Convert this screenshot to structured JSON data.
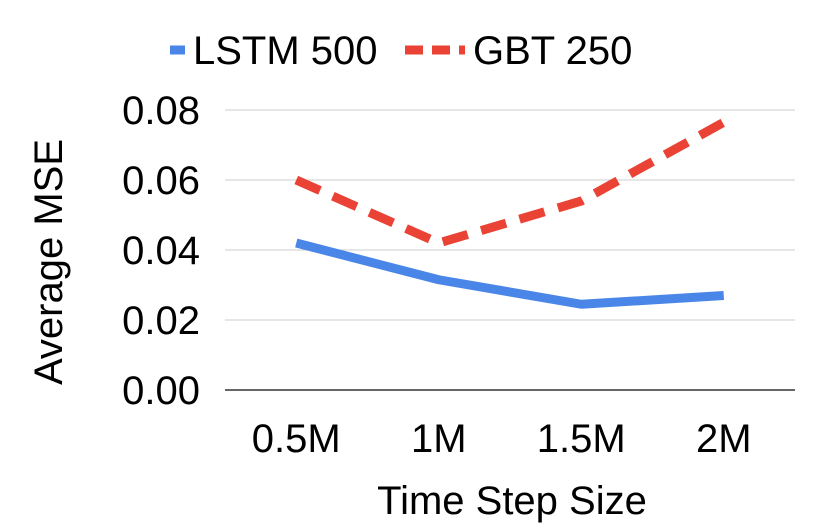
{
  "chart_data": {
    "type": "line",
    "title": "",
    "xlabel": "Time Step Size",
    "ylabel": "Average MSE",
    "categories": [
      "0.5M",
      "1M",
      "1.5M",
      "2M"
    ],
    "ylim": [
      0,
      0.08
    ],
    "yticks": [
      "0.00",
      "0.02",
      "0.04",
      "0.06",
      "0.08"
    ],
    "grid": true,
    "legend_position": "top",
    "series": [
      {
        "name": "LSTM 500",
        "values": [
          0.042,
          0.0315,
          0.0245,
          0.027
        ],
        "color": "#4a86e8",
        "style": "solid"
      },
      {
        "name": "GBT 250",
        "values": [
          0.06,
          0.042,
          0.054,
          0.0765
        ],
        "color": "#ea4335",
        "style": "dashed"
      }
    ]
  }
}
